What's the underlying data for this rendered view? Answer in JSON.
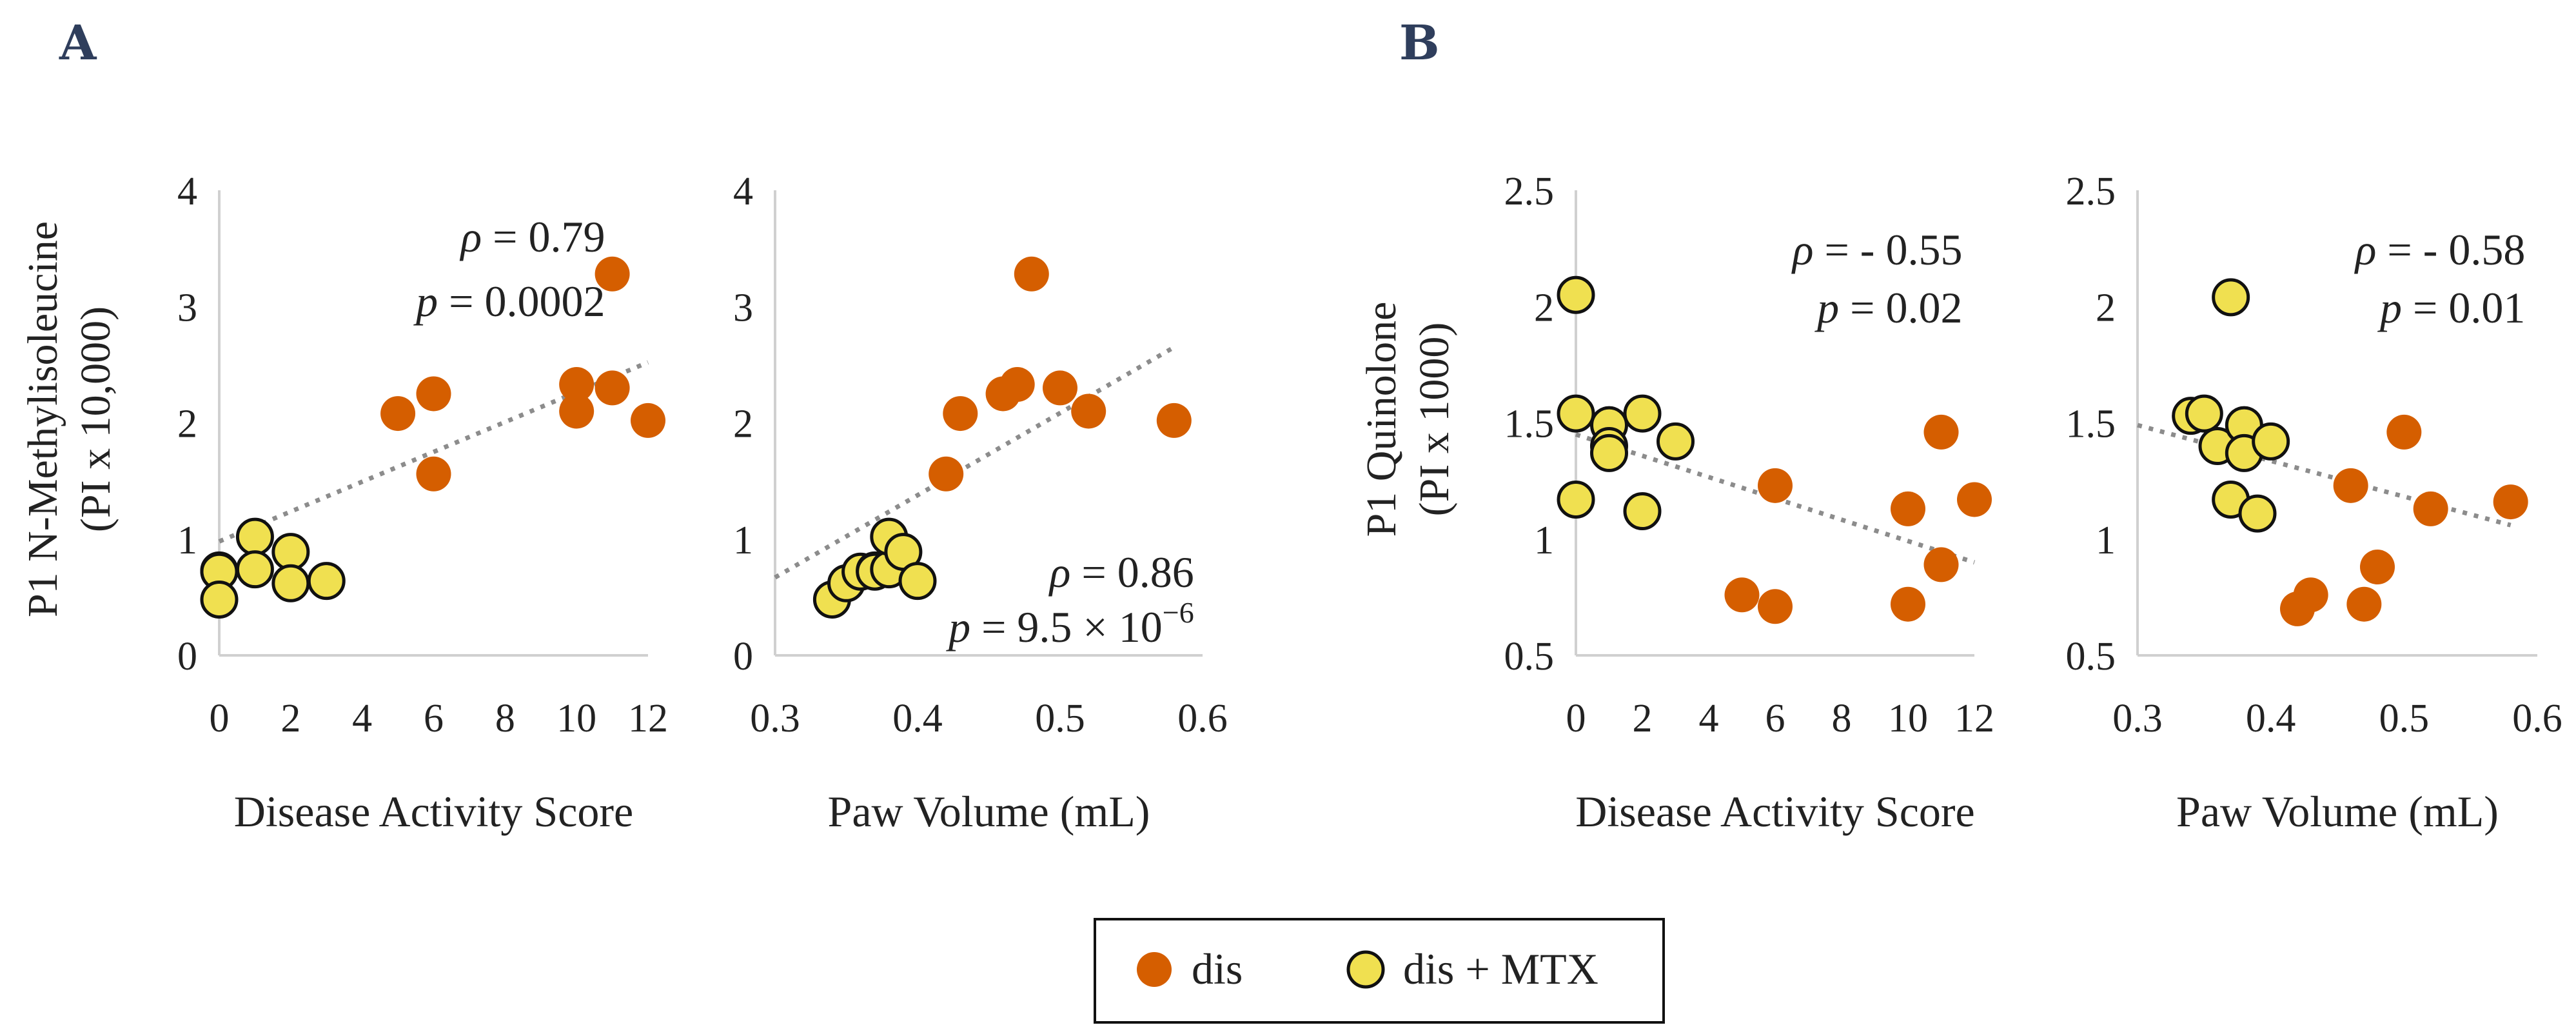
{
  "colors": {
    "dis": "#d55e00",
    "mtx_fill": "#f0e050",
    "mtx_stroke": "#111111",
    "panel_letter": "#2f3e5c",
    "trendline": "#8c8c8c"
  },
  "panels": [
    {
      "letter": "A",
      "ylabel_line1": "P1  N-Methylisoleucine",
      "ylabel_line2": "(PI x 10,000)"
    },
    {
      "letter": "B",
      "ylabel_line1": "P1  Quinolone",
      "ylabel_line2": "(PI x 1000)"
    }
  ],
  "legend": {
    "items": [
      {
        "label": "dis",
        "marker": "dis"
      },
      {
        "label": "dis + MTX",
        "marker": "mtx"
      }
    ]
  },
  "chart_data": [
    {
      "type": "scatter",
      "panel": "A",
      "xlabel": "Disease Activity Score",
      "xlim": [
        0,
        12
      ],
      "ylim": [
        0,
        4
      ],
      "x_ticks": [
        "0",
        "2",
        "4",
        "6",
        "8",
        "10",
        "12"
      ],
      "y_ticks": [
        "0",
        "1",
        "2",
        "3",
        "4"
      ],
      "annotation": {
        "rho": "= 0.79",
        "p": "= 0.0002",
        "position": "top-center"
      },
      "trendline": {
        "x0": 0,
        "y0": 0.98,
        "x1": 12,
        "y1": 2.52
      },
      "series": [
        {
          "name": "dis",
          "x": [
            5,
            6,
            6,
            10,
            10,
            11,
            11,
            12
          ],
          "y": [
            2.08,
            2.25,
            1.56,
            2.33,
            2.1,
            3.28,
            2.3,
            2.02
          ]
        },
        {
          "name": "dis + MTX",
          "x": [
            0,
            0,
            0,
            1,
            1,
            2,
            2,
            3
          ],
          "y": [
            0.73,
            0.72,
            0.48,
            1.02,
            0.74,
            0.89,
            0.62,
            0.64
          ]
        }
      ]
    },
    {
      "type": "scatter",
      "panel": "A",
      "xlabel": "Paw Volume (mL)",
      "xlim": [
        0.3,
        0.6
      ],
      "ylim": [
        0,
        4
      ],
      "x_ticks": [
        "0.3",
        "0.4",
        "0.5",
        "0.6"
      ],
      "y_ticks": [
        "0",
        "1",
        "2",
        "3",
        "4"
      ],
      "annotation": {
        "rho": "= 0.86",
        "p": "= 9.5 ×  10",
        "p_exp": "−6",
        "position": "bottom-right"
      },
      "trendline": {
        "x0": 0.3,
        "y0": 0.67,
        "x1": 0.58,
        "y1": 2.65
      },
      "series": [
        {
          "name": "dis",
          "x": [
            0.42,
            0.43,
            0.46,
            0.47,
            0.48,
            0.5,
            0.52,
            0.58
          ],
          "y": [
            1.56,
            2.08,
            2.25,
            2.33,
            3.28,
            2.3,
            2.1,
            2.02
          ]
        },
        {
          "name": "dis + MTX",
          "x": [
            0.34,
            0.35,
            0.36,
            0.37,
            0.37,
            0.38,
            0.38,
            0.39,
            0.4
          ],
          "y": [
            0.48,
            0.62,
            0.72,
            0.73,
            0.72,
            0.74,
            1.02,
            0.89,
            0.64
          ]
        }
      ]
    },
    {
      "type": "scatter",
      "panel": "B",
      "xlabel": "Disease Activity Score",
      "xlim": [
        0,
        12
      ],
      "ylim": [
        0.5,
        2.5
      ],
      "x_ticks": [
        "0",
        "2",
        "4",
        "6",
        "8",
        "10",
        "12"
      ],
      "y_ticks": [
        "0.5",
        "1",
        "1.5",
        "2",
        "2.5"
      ],
      "annotation": {
        "rho": "= - 0.55",
        "p": "= 0.02",
        "position": "top-right"
      },
      "trendline": {
        "x0": 0,
        "y0": 1.45,
        "x1": 12,
        "y1": 0.9
      },
      "series": [
        {
          "name": "dis",
          "x": [
            5,
            6,
            6,
            10,
            10,
            11,
            11,
            12
          ],
          "y": [
            0.76,
            1.23,
            0.71,
            1.13,
            0.72,
            1.46,
            0.89,
            1.17
          ]
        },
        {
          "name": "dis + MTX",
          "x": [
            0,
            0,
            0,
            1,
            1,
            1,
            2,
            2,
            3
          ],
          "y": [
            2.05,
            1.54,
            1.17,
            1.49,
            1.4,
            1.37,
            1.54,
            1.12,
            1.42
          ]
        }
      ]
    },
    {
      "type": "scatter",
      "panel": "B",
      "xlabel": "Paw Volume (mL)",
      "xlim": [
        0.3,
        0.6
      ],
      "ylim": [
        0.5,
        2.5
      ],
      "x_ticks": [
        "0.3",
        "0.4",
        "0.5",
        "0.6"
      ],
      "y_ticks": [
        "0.5",
        "1",
        "1.5",
        "2",
        "2.5"
      ],
      "annotation": {
        "rho": "= - 0.58",
        "p": "= 0.01",
        "position": "top-right"
      },
      "trendline": {
        "x0": 0.3,
        "y0": 1.49,
        "x1": 0.58,
        "y1": 1.06
      },
      "series": [
        {
          "name": "dis",
          "x": [
            0.42,
            0.43,
            0.46,
            0.47,
            0.48,
            0.5,
            0.52,
            0.58
          ],
          "y": [
            0.7,
            0.76,
            1.23,
            0.72,
            0.88,
            1.46,
            1.13,
            1.16
          ]
        },
        {
          "name": "dis + MTX",
          "x": [
            0.34,
            0.35,
            0.36,
            0.37,
            0.37,
            0.38,
            0.38,
            0.39,
            0.4
          ],
          "y": [
            1.53,
            1.54,
            1.4,
            2.04,
            1.17,
            1.49,
            1.37,
            1.11,
            1.42
          ]
        }
      ]
    }
  ]
}
